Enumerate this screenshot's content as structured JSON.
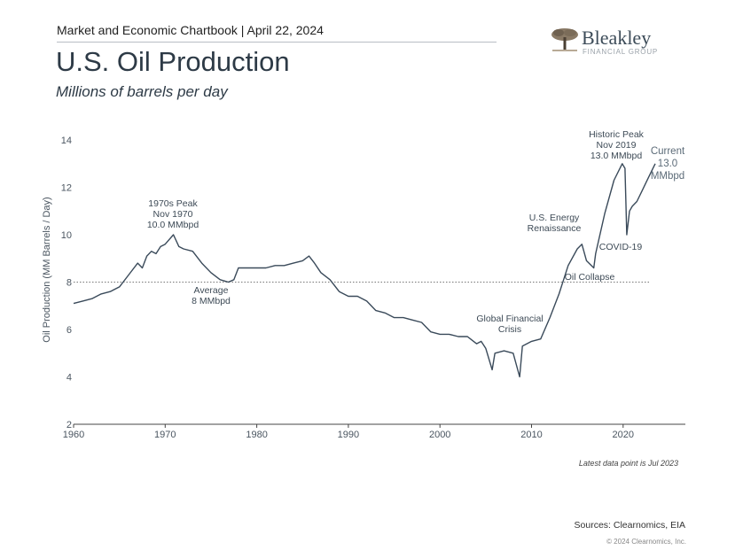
{
  "header": {
    "chartbook": "Market and Economic Chartbook | April 22, 2024",
    "title": "U.S. Oil Production",
    "subtitle": "Millions of barrels per day"
  },
  "logo": {
    "name": "Bleakley",
    "tagline": "FINANCIAL GROUP",
    "icon": "tree-icon"
  },
  "footer": {
    "note": "Latest data point is Jul 2023",
    "sources": "Sources: Clearnomics, EIA",
    "copyright": "© 2024 Clearnomics, Inc."
  },
  "chart_data": {
    "type": "line",
    "ylabel": "Oil Production (MM Barrels / Day)",
    "xlabel": "",
    "xlim": [
      1960,
      2028
    ],
    "ylim": [
      2,
      14
    ],
    "x_ticks": [
      "1960",
      "1970",
      "1980",
      "1990",
      "2000",
      "2010",
      "2020"
    ],
    "y_ticks": [
      "2",
      "4",
      "6",
      "8",
      "10",
      "12",
      "14"
    ],
    "grid": false,
    "line_color": "#3a4a5a",
    "reference_line": {
      "value": 8.0,
      "style": "dotted"
    },
    "series": [
      {
        "x": [
          1960.0,
          1961.0,
          1962.0,
          1963.0,
          1964.0,
          1965.0,
          1966.0,
          1967.0,
          1967.5,
          1968.0,
          1968.5,
          1969.0,
          1969.5,
          1970.0,
          1970.9,
          1971.5,
          1972.0,
          1973.0,
          1974.0,
          1975.0,
          1976.0,
          1976.9,
          1977.5,
          1978.0,
          1979.0,
          1980.0,
          1981.0,
          1982.0,
          1983.0,
          1984.0,
          1985.0,
          1985.7,
          1986.3,
          1987.0,
          1988.0,
          1989.0,
          1990.0,
          1991.0,
          1992.0,
          1993.0,
          1994.0,
          1995.0,
          1996.0,
          1997.0,
          1998.0,
          1999.0,
          2000.0,
          2001.0,
          2002.0,
          2003.0,
          2004.0,
          2004.5,
          2005.0,
          2005.7,
          2006.0,
          2007.0,
          2008.0,
          2008.7,
          2009.0,
          2010.0,
          2011.0,
          2012.0,
          2013.0,
          2014.0,
          2015.0,
          2015.5,
          2016.0,
          2016.8,
          2017.0,
          2018.0,
          2019.0,
          2019.9,
          2020.2,
          2020.4,
          2020.7,
          2021.0,
          2021.5,
          2022.0,
          2022.5,
          2023.0,
          2023.5
        ],
        "y": [
          7.1,
          7.2,
          7.3,
          7.5,
          7.6,
          7.8,
          8.3,
          8.8,
          8.6,
          9.1,
          9.3,
          9.2,
          9.5,
          9.6,
          10.0,
          9.5,
          9.4,
          9.3,
          8.8,
          8.4,
          8.1,
          8.0,
          8.1,
          8.6,
          8.6,
          8.6,
          8.6,
          8.7,
          8.7,
          8.8,
          8.9,
          9.1,
          8.8,
          8.4,
          8.1,
          7.6,
          7.4,
          7.4,
          7.2,
          6.8,
          6.7,
          6.5,
          6.5,
          6.4,
          6.3,
          5.9,
          5.8,
          5.8,
          5.7,
          5.7,
          5.4,
          5.5,
          5.2,
          4.3,
          5.0,
          5.1,
          5.0,
          4.0,
          5.3,
          5.5,
          5.6,
          6.5,
          7.5,
          8.7,
          9.4,
          9.6,
          8.9,
          8.6,
          9.2,
          10.9,
          12.3,
          13.0,
          12.8,
          10.0,
          11.0,
          11.2,
          11.4,
          11.8,
          12.2,
          12.6,
          13.0
        ]
      }
    ],
    "annotations": [
      {
        "id": "peak1970",
        "lines": [
          "1970s Peak",
          "Nov 1970",
          "10.0 MMbpd"
        ]
      },
      {
        "id": "average",
        "lines": [
          "Average",
          "8 MMbpd"
        ]
      },
      {
        "id": "gfc",
        "lines": [
          "Global Financial",
          "Crisis"
        ]
      },
      {
        "id": "renaissance",
        "lines": [
          "U.S. Energy",
          "Renaissance"
        ]
      },
      {
        "id": "collapse",
        "lines": [
          "Oil Collapse"
        ]
      },
      {
        "id": "covid",
        "lines": [
          "COVID-19"
        ]
      },
      {
        "id": "peak2019",
        "lines": [
          "Historic Peak",
          "Nov 2019",
          "13.0 MMbpd"
        ]
      },
      {
        "id": "current",
        "lines": [
          "Current",
          "13.0",
          "MMbpd"
        ]
      }
    ]
  }
}
